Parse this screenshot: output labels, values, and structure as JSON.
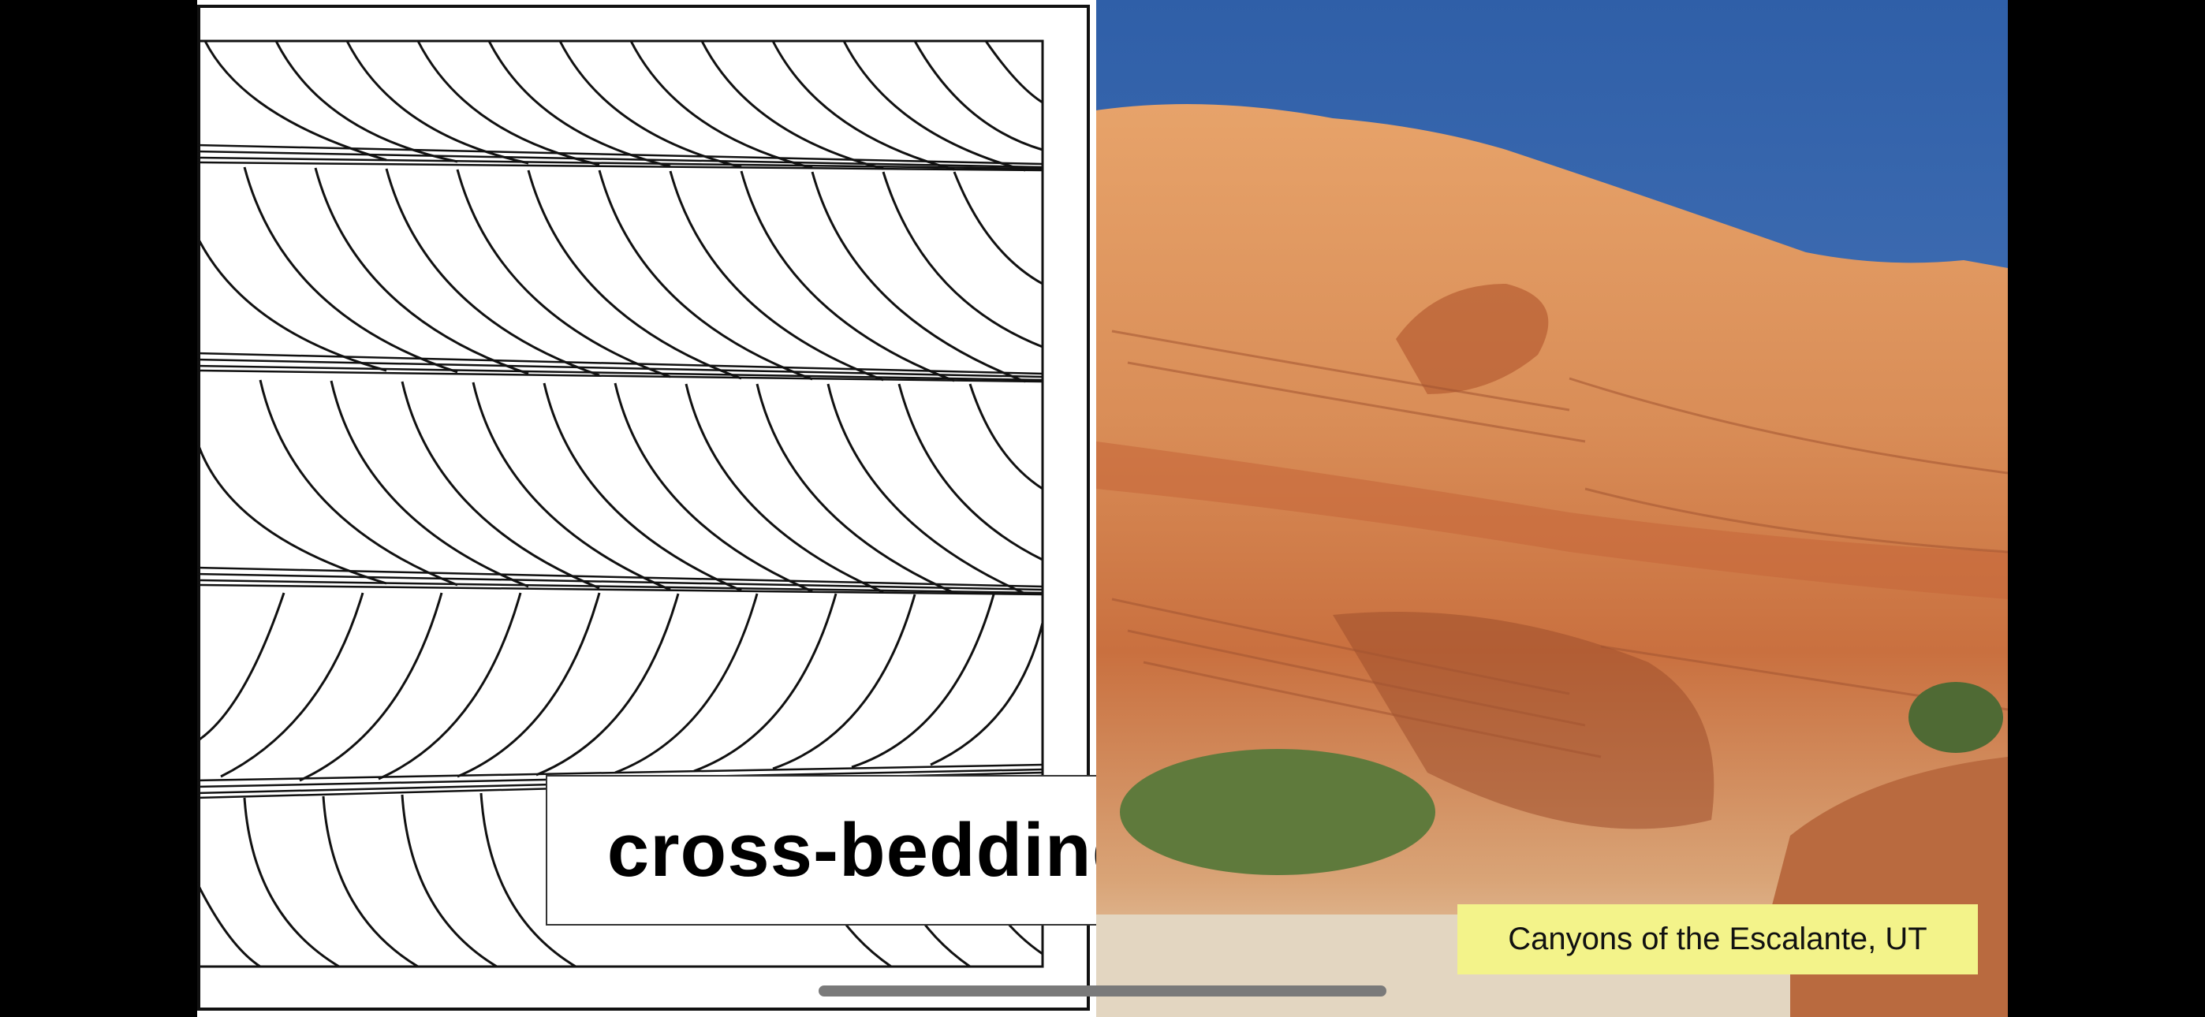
{
  "slide": {
    "diagram_title": "cross-bedding",
    "photo_caption": "Canyons of the Escalante, UT"
  },
  "colors": {
    "background": "#000000",
    "caption_bg": "#f3f38a",
    "sky": "#3f6fb3",
    "rock": "#d9874f"
  },
  "icons": {
    "home_indicator": "home-indicator-bar"
  }
}
